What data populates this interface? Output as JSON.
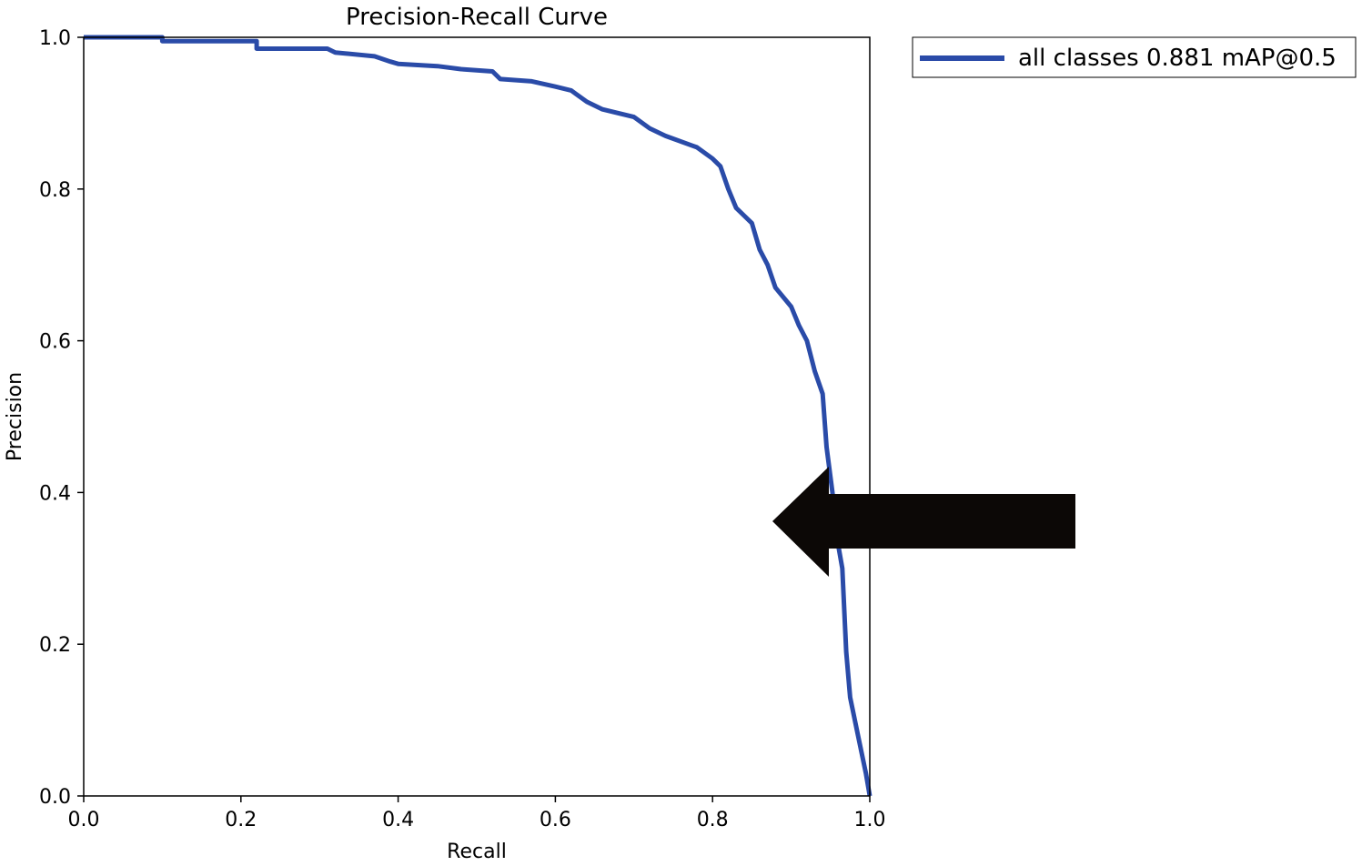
{
  "chart_data": {
    "type": "line",
    "title": "Precision-Recall Curve",
    "xlabel": "Recall",
    "ylabel": "Precision",
    "xlim": [
      0.0,
      1.0
    ],
    "ylim": [
      0.0,
      1.0
    ],
    "xticks": [
      "0.0",
      "0.2",
      "0.4",
      "0.6",
      "0.8",
      "1.0"
    ],
    "yticks": [
      "0.0",
      "0.2",
      "0.4",
      "0.6",
      "0.8",
      "1.0"
    ],
    "grid": false,
    "legend_position": "outside-top-right",
    "series": [
      {
        "name": "all classes 0.881 mAP@0.5",
        "color": "#2a4ba8",
        "x": [
          0.0,
          0.1,
          0.1,
          0.2,
          0.22,
          0.22,
          0.31,
          0.32,
          0.37,
          0.39,
          0.4,
          0.45,
          0.48,
          0.52,
          0.53,
          0.57,
          0.6,
          0.62,
          0.64,
          0.66,
          0.7,
          0.72,
          0.74,
          0.78,
          0.8,
          0.81,
          0.82,
          0.83,
          0.84,
          0.85,
          0.86,
          0.87,
          0.88,
          0.9,
          0.91,
          0.92,
          0.93,
          0.94,
          0.945,
          0.95,
          0.955,
          0.96,
          0.965,
          0.97,
          0.975,
          0.985,
          0.995,
          1.0
        ],
        "y": [
          1.0,
          1.0,
          0.995,
          0.995,
          0.995,
          0.985,
          0.985,
          0.98,
          0.975,
          0.968,
          0.965,
          0.962,
          0.958,
          0.955,
          0.945,
          0.942,
          0.935,
          0.93,
          0.915,
          0.905,
          0.895,
          0.88,
          0.87,
          0.855,
          0.84,
          0.83,
          0.8,
          0.775,
          0.765,
          0.755,
          0.72,
          0.7,
          0.67,
          0.645,
          0.62,
          0.6,
          0.56,
          0.53,
          0.46,
          0.42,
          0.38,
          0.33,
          0.3,
          0.19,
          0.13,
          0.08,
          0.03,
          0.0
        ]
      }
    ]
  },
  "overlay": {
    "arrow_color": "#0c0806",
    "arrow_direction": "left"
  }
}
